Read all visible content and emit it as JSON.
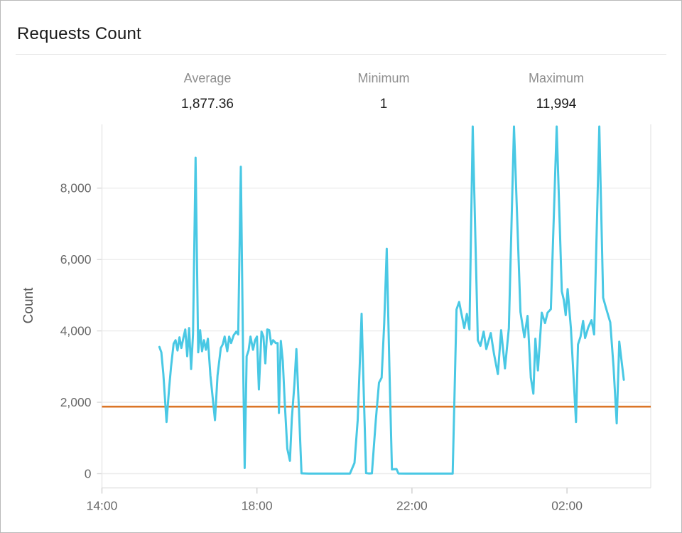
{
  "header": {
    "title": "Requests Count"
  },
  "stats": [
    {
      "label": "Average",
      "value": "1,877.36"
    },
    {
      "label": "Minimum",
      "value": "1"
    },
    {
      "label": "Maximum",
      "value": "11,994"
    }
  ],
  "chart_data": {
    "type": "line",
    "title": "Requests Count",
    "xlabel": "",
    "ylabel": "Count",
    "legend": "none",
    "grid": "horizontal",
    "ylim": [
      0,
      9780
    ],
    "y_ticks": [
      {
        "v": 0,
        "label": "0"
      },
      {
        "v": 2000,
        "label": "2,000"
      },
      {
        "v": 4000,
        "label": "4,000"
      },
      {
        "v": 6000,
        "label": "6,000"
      },
      {
        "v": 8000,
        "label": "8,000"
      }
    ],
    "x_axis": "time of day, 14:00 through ~04:10 next day",
    "x_ticks": [
      {
        "min": 0,
        "label": "14:00"
      },
      {
        "min": 240,
        "label": "18:00"
      },
      {
        "min": 480,
        "label": "22:00"
      },
      {
        "min": 720,
        "label": "02:00"
      }
    ],
    "average_line": {
      "value": 1877.36,
      "color": "#db7526"
    },
    "summary_stats": {
      "average": 1877.36,
      "minimum": 1,
      "maximum": 11994
    },
    "note": "Series values above ~9,730 are clamped at the top of the plot area; the four tall spikes after 23:30 are clipped (true maximum 11,994). Points are [minutes after 14:00, approximate value].",
    "series": [
      {
        "name": "Count",
        "color": "#49c8e4",
        "points": [
          [
            89,
            3550
          ],
          [
            92,
            3400
          ],
          [
            95,
            2800
          ],
          [
            100,
            1450
          ],
          [
            104,
            2400
          ],
          [
            107,
            3000
          ],
          [
            111,
            3640
          ],
          [
            114,
            3740
          ],
          [
            117,
            3450
          ],
          [
            120,
            3820
          ],
          [
            123,
            3520
          ],
          [
            126,
            3800
          ],
          [
            129,
            4040
          ],
          [
            132,
            3290
          ],
          [
            135,
            4080
          ],
          [
            138,
            2930
          ],
          [
            141,
            3900
          ],
          [
            145,
            8850
          ],
          [
            149,
            3400
          ],
          [
            152,
            4020
          ],
          [
            155,
            3430
          ],
          [
            158,
            3740
          ],
          [
            161,
            3470
          ],
          [
            164,
            3780
          ],
          [
            168,
            2750
          ],
          [
            175,
            1500
          ],
          [
            179,
            2750
          ],
          [
            184,
            3520
          ],
          [
            187,
            3620
          ],
          [
            190,
            3840
          ],
          [
            194,
            3430
          ],
          [
            197,
            3840
          ],
          [
            200,
            3660
          ],
          [
            204,
            3880
          ],
          [
            208,
            3980
          ],
          [
            211,
            3900
          ],
          [
            215,
            8600
          ],
          [
            219,
            2600
          ],
          [
            221,
            160
          ],
          [
            224,
            3290
          ],
          [
            227,
            3450
          ],
          [
            230,
            3840
          ],
          [
            234,
            3470
          ],
          [
            237,
            3740
          ],
          [
            240,
            3840
          ],
          [
            243,
            2360
          ],
          [
            247,
            3980
          ],
          [
            250,
            3840
          ],
          [
            253,
            3090
          ],
          [
            256,
            4040
          ],
          [
            259,
            4020
          ],
          [
            262,
            3620
          ],
          [
            265,
            3740
          ],
          [
            269,
            3660
          ],
          [
            272,
            3660
          ],
          [
            274,
            1700
          ],
          [
            277,
            3720
          ],
          [
            280,
            3150
          ],
          [
            283,
            2000
          ],
          [
            287,
            700
          ],
          [
            291,
            360
          ],
          [
            294,
            1550
          ],
          [
            298,
            2500
          ],
          [
            301,
            3490
          ],
          [
            305,
            1800
          ],
          [
            309,
            10
          ],
          [
            320,
            2
          ],
          [
            335,
            2
          ],
          [
            350,
            2
          ],
          [
            365,
            2
          ],
          [
            380,
            2
          ],
          [
            384,
            2
          ],
          [
            391,
            300
          ],
          [
            396,
            1500
          ],
          [
            399,
            3000
          ],
          [
            402,
            4480
          ],
          [
            405,
            2500
          ],
          [
            409,
            15
          ],
          [
            413,
            5
          ],
          [
            418,
            10
          ],
          [
            424,
            1500
          ],
          [
            429,
            2550
          ],
          [
            433,
            2690
          ],
          [
            437,
            4200
          ],
          [
            441,
            6300
          ],
          [
            445,
            3000
          ],
          [
            449,
            120
          ],
          [
            456,
            130
          ],
          [
            459,
            5
          ],
          [
            470,
            2
          ],
          [
            485,
            2
          ],
          [
            500,
            2
          ],
          [
            515,
            2
          ],
          [
            530,
            2
          ],
          [
            543,
            2
          ],
          [
            549,
            4600
          ],
          [
            553,
            4810
          ],
          [
            561,
            4080
          ],
          [
            565,
            4475
          ],
          [
            569,
            4040
          ],
          [
            574,
            11200
          ],
          [
            582,
            3740
          ],
          [
            586,
            3580
          ],
          [
            591,
            3980
          ],
          [
            595,
            3490
          ],
          [
            602,
            3940
          ],
          [
            607,
            3350
          ],
          [
            613,
            2790
          ],
          [
            618,
            4020
          ],
          [
            624,
            2950
          ],
          [
            630,
            4080
          ],
          [
            638,
            11994
          ],
          [
            648,
            4530
          ],
          [
            654,
            3820
          ],
          [
            659,
            4420
          ],
          [
            664,
            2690
          ],
          [
            668,
            2240
          ],
          [
            671,
            3780
          ],
          [
            675,
            2890
          ],
          [
            681,
            4510
          ],
          [
            686,
            4220
          ],
          [
            690,
            4510
          ],
          [
            695,
            4610
          ],
          [
            704,
            11400
          ],
          [
            712,
            5110
          ],
          [
            715,
            4870
          ],
          [
            718,
            4440
          ],
          [
            721,
            5170
          ],
          [
            726,
            4080
          ],
          [
            734,
            1450
          ],
          [
            737,
            3620
          ],
          [
            741,
            3840
          ],
          [
            745,
            4280
          ],
          [
            748,
            3800
          ],
          [
            753,
            4100
          ],
          [
            758,
            4300
          ],
          [
            762,
            3900
          ],
          [
            770,
            11994
          ],
          [
            776,
            4930
          ],
          [
            780,
            4670
          ],
          [
            784,
            4420
          ],
          [
            787,
            4240
          ],
          [
            792,
            3000
          ],
          [
            797,
            1410
          ],
          [
            801,
            3700
          ],
          [
            808,
            2630
          ]
        ]
      }
    ]
  }
}
